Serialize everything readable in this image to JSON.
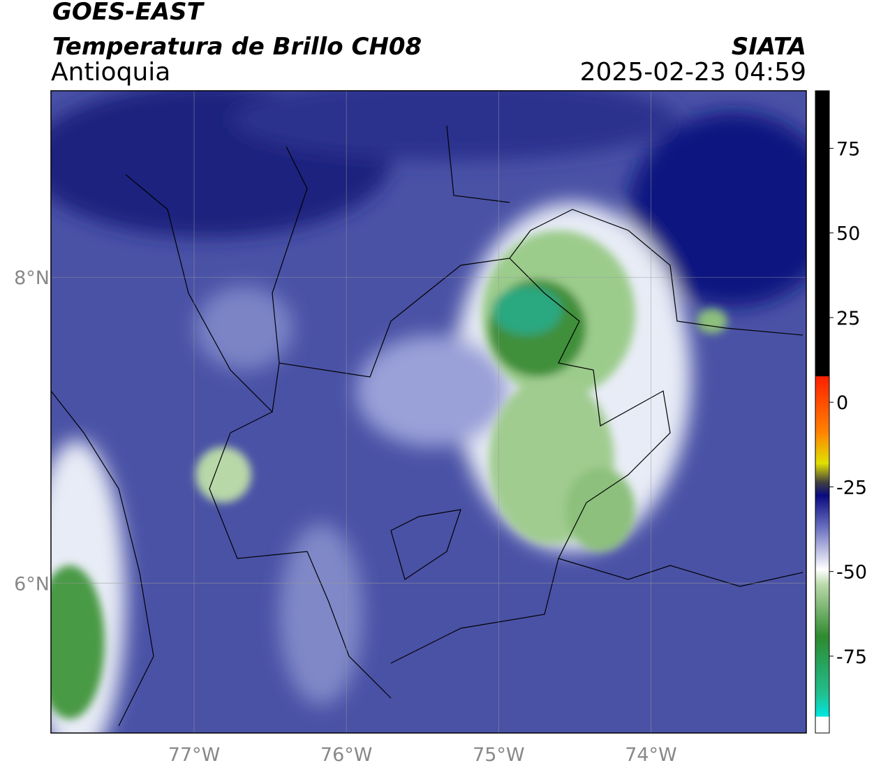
{
  "header": {
    "satellite": "GOES-EAST",
    "product": "Temperatura de Brillo CH08",
    "region": "Antioquia",
    "source": "SIATA",
    "datetime": "2025-02-23 04:59"
  },
  "map": {
    "lon_range": [
      -77.94,
      -72.98
    ],
    "lat_range": [
      5.02,
      9.22
    ],
    "lon_ticks": [
      {
        "value": -77,
        "label": "77°W"
      },
      {
        "value": -76,
        "label": "76°W"
      },
      {
        "value": -75,
        "label": "75°W"
      },
      {
        "value": -74,
        "label": "74°W"
      }
    ],
    "lat_ticks": [
      {
        "value": 8,
        "label": "8°N"
      },
      {
        "value": 6,
        "label": "6°N"
      }
    ]
  },
  "colorbar": {
    "range": [
      -97.7,
      92
    ],
    "ticks": [
      75,
      50,
      25,
      0,
      -25,
      -50,
      -75
    ]
  }
}
